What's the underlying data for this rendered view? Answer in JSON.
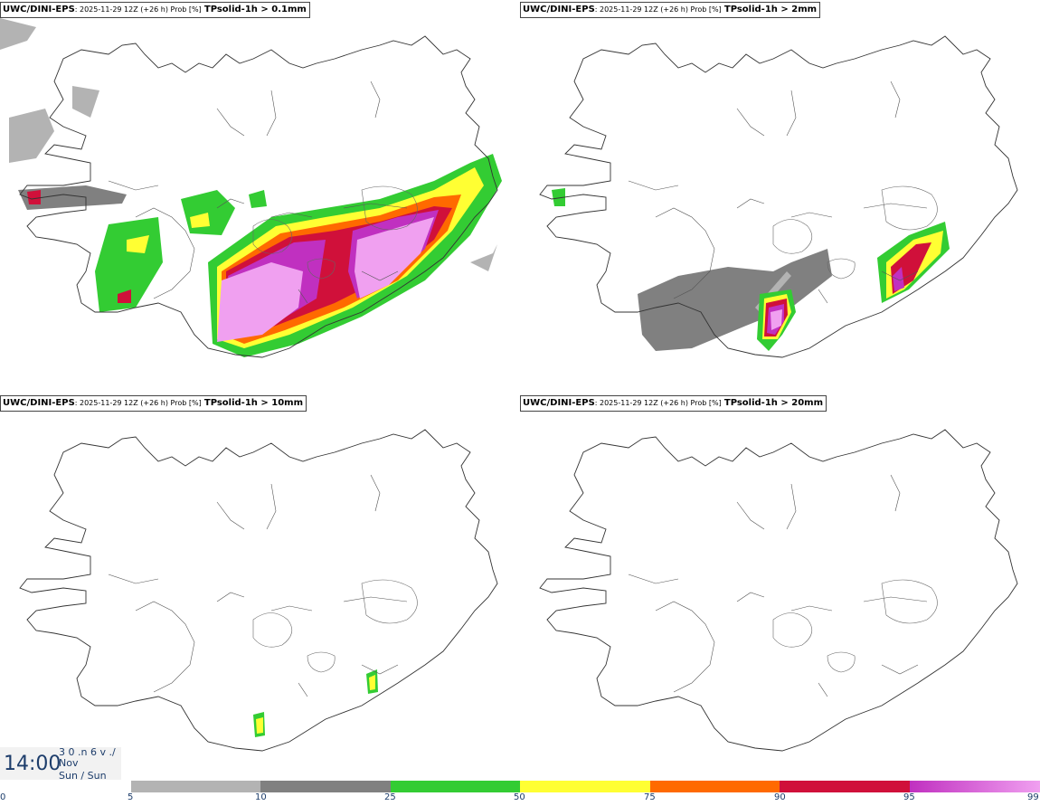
{
  "panels": [
    {
      "model": "UWC/DINI-EPS",
      "meta": ": 2025-11-29 12Z (+26 h) Prob [%]",
      "param": "TPsolid-1h > 0.1mm"
    },
    {
      "model": "UWC/DINI-EPS",
      "meta": ": 2025-11-29 12Z (+26 h) Prob [%]",
      "param": "TPsolid-1h > 2mm"
    },
    {
      "model": "UWC/DINI-EPS",
      "meta": ": 2025-11-29 12Z (+26 h) Prob [%]",
      "param": "TPsolid-1h > 10mm"
    },
    {
      "model": "UWC/DINI-EPS",
      "meta": ": 2025-11-29 12Z (+26 h) Prob [%]",
      "param": "TPsolid-1h > 20mm"
    }
  ],
  "clock": {
    "time": "14:00",
    "line1": "3 0 .n 6 v ./",
    "line2": "Nov",
    "line3": "Sun / Sun"
  },
  "legend": {
    "ticks": [
      "0",
      "5",
      "10",
      "25",
      "50",
      "75",
      "90",
      "95",
      "99"
    ],
    "colors": {
      "c5": "#b3b3b3",
      "c10": "#808080",
      "c25": "#33cc33",
      "c50": "#ffff33",
      "c75": "#ff6a00",
      "c90": "#d0103a",
      "c95": "#c030c0",
      "c99": "#f0a0f0"
    }
  }
}
